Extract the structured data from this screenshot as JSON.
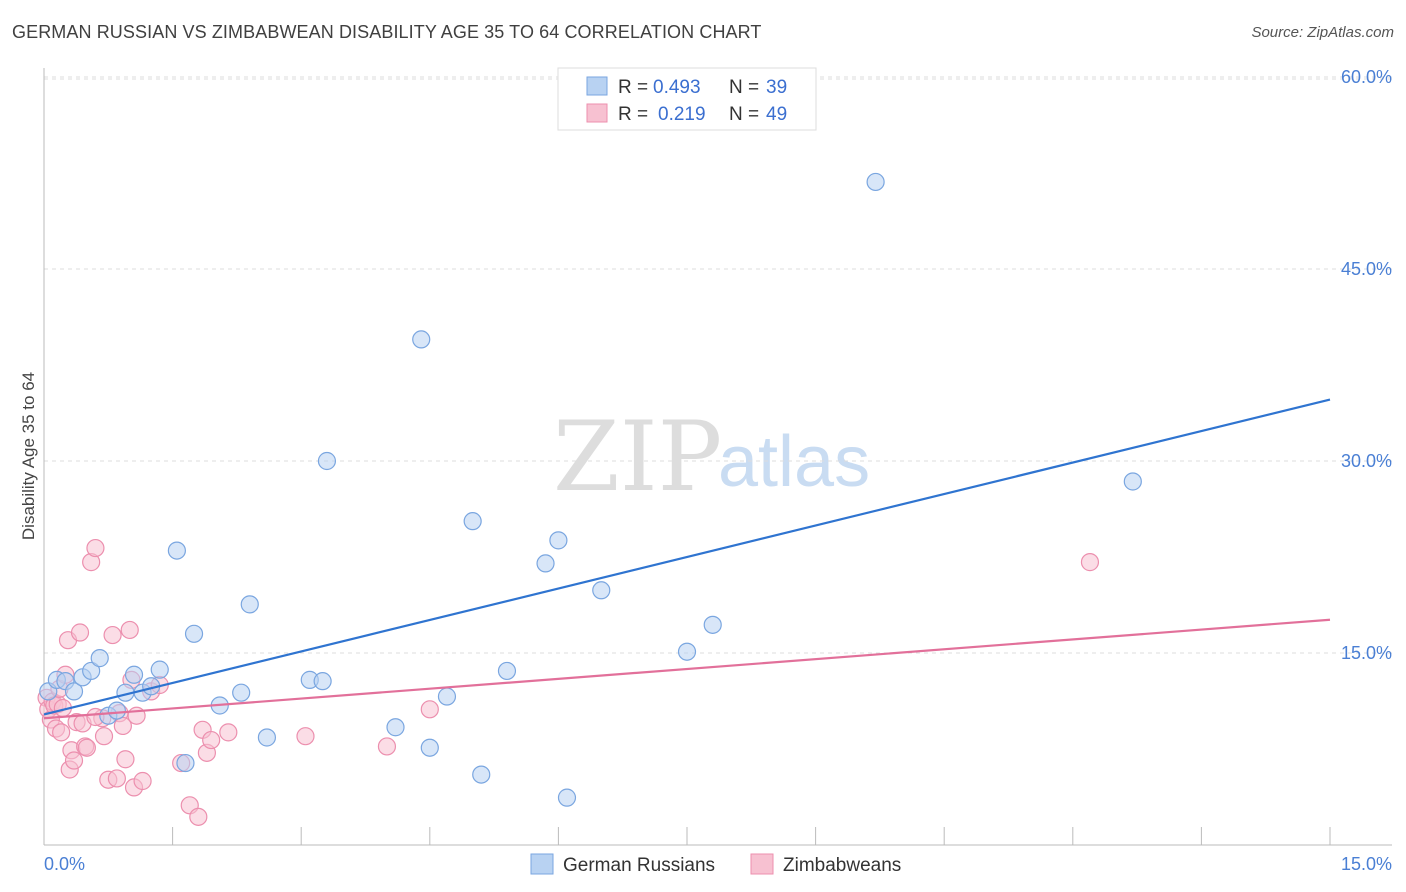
{
  "header": {
    "title": "GERMAN RUSSIAN VS ZIMBABWEAN DISABILITY AGE 35 TO 64 CORRELATION CHART",
    "source": "Source: ZipAtlas.com"
  },
  "watermark": {
    "zip": "ZIP",
    "atlas": "atlas"
  },
  "colors": {
    "blue_fill": "#b8d2f2",
    "blue_stroke": "#7aa6e0",
    "blue_line": "#2f74d0",
    "pink_fill": "#f7c1d1",
    "pink_stroke": "#ec8fae",
    "pink_line": "#e2709a",
    "grid": "#dddddd",
    "axis_text": "#4a7fd4"
  },
  "legend": {
    "rows": [
      {
        "r_label": "R =",
        "r_value": "0.493",
        "n_label": "N =",
        "n_value": "39"
      },
      {
        "r_label": "R =",
        "r_value": "0.219",
        "n_label": "N =",
        "n_value": "49"
      }
    ]
  },
  "chart_data": {
    "type": "scatter",
    "title": "GERMAN RUSSIAN VS ZIMBABWEAN DISABILITY AGE 35 TO 64 CORRELATION CHART",
    "xlabel": "",
    "ylabel": "Disability Age 35 to 64",
    "xlim": [
      0,
      15
    ],
    "ylim": [
      0,
      60
    ],
    "x_tick_labels": [
      "0.0%",
      "15.0%"
    ],
    "y_ticks": [
      15,
      30,
      45,
      60
    ],
    "y_tick_labels": [
      "15.0%",
      "30.0%",
      "45.0%",
      "60.0%"
    ],
    "series": [
      {
        "name": "German Russians",
        "color": "#7aa6e0",
        "r": 0.493,
        "n": 39,
        "trend": {
          "x": [
            0,
            15
          ],
          "y": [
            10.2,
            34.8
          ]
        },
        "points": [
          [
            0.05,
            12.0
          ],
          [
            0.15,
            12.9
          ],
          [
            0.25,
            12.8
          ],
          [
            0.35,
            12.0
          ],
          [
            0.45,
            13.1
          ],
          [
            0.55,
            13.6
          ],
          [
            0.65,
            14.6
          ],
          [
            0.75,
            10.1
          ],
          [
            0.85,
            10.5
          ],
          [
            0.95,
            11.9
          ],
          [
            1.05,
            13.3
          ],
          [
            1.15,
            11.9
          ],
          [
            1.25,
            12.4
          ],
          [
            1.35,
            13.7
          ],
          [
            1.55,
            23.0
          ],
          [
            1.65,
            6.4
          ],
          [
            1.75,
            16.5
          ],
          [
            2.05,
            10.9
          ],
          [
            2.3,
            11.9
          ],
          [
            2.4,
            18.8
          ],
          [
            2.6,
            8.4
          ],
          [
            3.1,
            12.9
          ],
          [
            3.25,
            12.8
          ],
          [
            3.3,
            30.0
          ],
          [
            4.1,
            9.2
          ],
          [
            4.4,
            39.5
          ],
          [
            4.5,
            7.6
          ],
          [
            4.7,
            11.6
          ],
          [
            5.0,
            25.3
          ],
          [
            5.1,
            5.5
          ],
          [
            5.4,
            13.6
          ],
          [
            5.85,
            22.0
          ],
          [
            6.0,
            23.8
          ],
          [
            6.1,
            3.7
          ],
          [
            6.5,
            19.9
          ],
          [
            7.5,
            15.1
          ],
          [
            7.8,
            17.2
          ],
          [
            9.7,
            51.8
          ],
          [
            12.7,
            28.4
          ]
        ]
      },
      {
        "name": "Zimbabweans",
        "color": "#ec8fae",
        "r": 0.219,
        "n": 49,
        "trend": {
          "x": [
            0,
            15
          ],
          "y": [
            9.9,
            17.6
          ]
        },
        "points": [
          [
            0.03,
            11.5
          ],
          [
            0.05,
            10.6
          ],
          [
            0.08,
            9.8
          ],
          [
            0.1,
            11.2
          ],
          [
            0.12,
            10.9
          ],
          [
            0.14,
            9.1
          ],
          [
            0.16,
            11.0
          ],
          [
            0.18,
            12.2
          ],
          [
            0.2,
            8.8
          ],
          [
            0.22,
            10.7
          ],
          [
            0.25,
            13.3
          ],
          [
            0.28,
            16.0
          ],
          [
            0.3,
            5.9
          ],
          [
            0.32,
            7.4
          ],
          [
            0.35,
            6.6
          ],
          [
            0.38,
            9.6
          ],
          [
            0.42,
            16.6
          ],
          [
            0.45,
            9.5
          ],
          [
            0.48,
            7.7
          ],
          [
            0.5,
            7.6
          ],
          [
            0.55,
            22.1
          ],
          [
            0.6,
            23.2
          ],
          [
            0.68,
            9.9
          ],
          [
            0.7,
            8.5
          ],
          [
            0.75,
            5.1
          ],
          [
            0.8,
            16.4
          ],
          [
            0.85,
            5.2
          ],
          [
            0.88,
            10.3
          ],
          [
            0.92,
            9.3
          ],
          [
            0.95,
            6.7
          ],
          [
            1.0,
            16.8
          ],
          [
            1.02,
            12.9
          ],
          [
            1.08,
            10.1
          ],
          [
            1.05,
            4.5
          ],
          [
            1.15,
            5.0
          ],
          [
            1.25,
            12.0
          ],
          [
            1.35,
            12.5
          ],
          [
            1.6,
            6.4
          ],
          [
            1.7,
            3.1
          ],
          [
            1.8,
            2.2
          ],
          [
            1.85,
            9.0
          ],
          [
            1.9,
            7.2
          ],
          [
            1.95,
            8.2
          ],
          [
            2.15,
            8.8
          ],
          [
            3.05,
            8.5
          ],
          [
            4.0,
            7.7
          ],
          [
            4.5,
            10.6
          ],
          [
            12.2,
            22.1
          ],
          [
            0.6,
            10.0
          ]
        ]
      }
    ]
  }
}
